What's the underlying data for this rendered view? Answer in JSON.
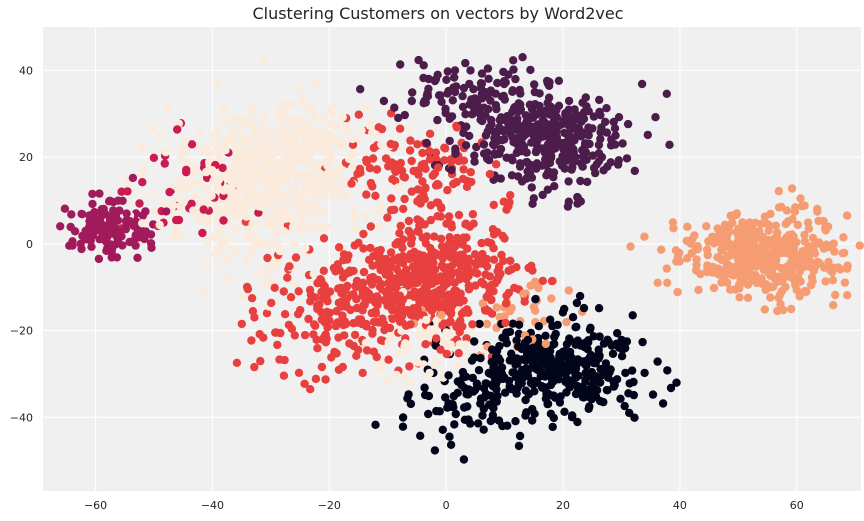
{
  "chart_data": {
    "type": "scatter",
    "title": "Clustering Customers on vectors by Word2vec",
    "xlabel": "",
    "ylabel": "",
    "xlim": [
      -69,
      71
    ],
    "ylim": [
      -57,
      50
    ],
    "xticks": [
      -60,
      -40,
      -20,
      0,
      20,
      40,
      60
    ],
    "yticks": [
      -40,
      -20,
      0,
      20,
      40
    ],
    "grid": true,
    "legend": "none",
    "background_color": "#f0f0f0",
    "grid_color": "#ffffff",
    "colormap": "rocket",
    "clusters": [
      {
        "color": "#03051a",
        "center": [
          20,
          -28
        ],
        "spread": [
          7,
          5.5
        ],
        "count": 330
      },
      {
        "color": "#03051a",
        "center": [
          3,
          -36
        ],
        "spread": [
          6,
          5
        ],
        "count": 90
      },
      {
        "color": "#4c1d4b",
        "center": [
          16,
          25
        ],
        "spread": [
          7,
          6
        ],
        "count": 380
      },
      {
        "color": "#4c1d4b",
        "center": [
          2,
          35
        ],
        "spread": [
          6,
          4
        ],
        "count": 80
      },
      {
        "color": "#a11a5b",
        "center": [
          -57,
          4
        ],
        "spread": [
          4,
          3.5
        ],
        "count": 130
      },
      {
        "color": "#cb1b4f",
        "center": [
          -44,
          14
        ],
        "spread": [
          5,
          6
        ],
        "count": 40
      },
      {
        "color": "#e83f3f",
        "center": [
          -2,
          -8
        ],
        "spread": [
          7,
          7
        ],
        "count": 420
      },
      {
        "color": "#e83f3f",
        "center": [
          -18,
          -15
        ],
        "spread": [
          8,
          7
        ],
        "count": 220
      },
      {
        "color": "#e83f3f",
        "center": [
          -5,
          17
        ],
        "spread": [
          7,
          6
        ],
        "count": 120
      },
      {
        "color": "#f69c73",
        "center": [
          54,
          -3
        ],
        "spread": [
          7,
          5
        ],
        "count": 420
      },
      {
        "color": "#f69c73",
        "center": [
          10,
          -15
        ],
        "spread": [
          5,
          4
        ],
        "count": 40
      },
      {
        "color": "#faebdd",
        "center": [
          -32,
          13
        ],
        "spread": [
          8,
          8
        ],
        "count": 500
      },
      {
        "color": "#faebdd",
        "center": [
          -22,
          25
        ],
        "spread": [
          6,
          5
        ],
        "count": 90
      },
      {
        "color": "#faebdd",
        "center": [
          -5,
          -22
        ],
        "spread": [
          5,
          5
        ],
        "count": 60
      }
    ]
  }
}
